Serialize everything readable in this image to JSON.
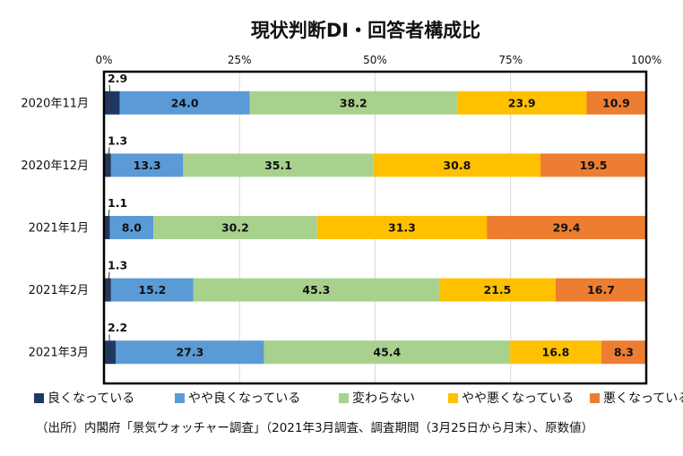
{
  "chart_data": {
    "type": "bar",
    "orientation": "horizontal",
    "stacked": true,
    "title": "現状判断DI・回答者構成比",
    "x_ticks": [
      "0%",
      "25%",
      "50%",
      "75%",
      "100%"
    ],
    "xlim": [
      0,
      100
    ],
    "categories": [
      "2020年11月",
      "2020年12月",
      "2021年1月",
      "2021年2月",
      "2021年3月"
    ],
    "series": [
      {
        "name": "良くなっている",
        "color": "#1f3864",
        "values": [
          2.9,
          1.3,
          1.1,
          1.3,
          2.2
        ]
      },
      {
        "name": "やや良くなっている",
        "color": "#5b9bd5",
        "values": [
          24.0,
          13.3,
          8.0,
          15.2,
          27.3
        ]
      },
      {
        "name": "変わらない",
        "color": "#a9d18e",
        "values": [
          38.2,
          35.1,
          30.2,
          45.3,
          45.4
        ]
      },
      {
        "name": "やや悪くなっている",
        "color": "#ffc000",
        "values": [
          23.9,
          30.8,
          31.3,
          21.5,
          16.8
        ]
      },
      {
        "name": "悪くなっている",
        "color": "#ed7d31",
        "values": [
          10.9,
          19.5,
          29.4,
          16.7,
          8.3
        ]
      }
    ],
    "legend_position": "bottom",
    "source_note": "（出所）内閣府「景気ウォッチャー調査」（2021年3月調査、調査期間（3月25日から月末）、原数値）"
  }
}
